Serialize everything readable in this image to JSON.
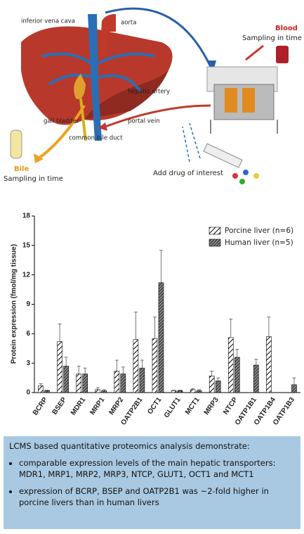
{
  "diagram": {
    "labels": {
      "ivc": "inferior vena cava",
      "aorta": "aorta",
      "hepatic_artery": "hepatic artery",
      "portal_vein": "portal vein",
      "gall_bladder": "gall bladder",
      "bile_duct": "common bile duct",
      "blood": "Blood",
      "blood_sampling": "Sampling in time",
      "bile": "Bile",
      "bile_sampling": "Sampling in time",
      "drug": "Add drug of interest"
    }
  },
  "chart_data": {
    "type": "bar",
    "y_label": "Protein expression (fmol/mg tissue)",
    "categories": [
      "BCRP",
      "BSEP",
      "MDR1",
      "MRP1",
      "MRP2",
      "OATP2B1",
      "OCT1",
      "GLUT1",
      "MCT1",
      "MRP3",
      "NTCP",
      "OATP1B1",
      "OATP1B4",
      "OATP1B3"
    ],
    "series": [
      {
        "name": "Porcine liver (n=6)",
        "color": "#ffffff",
        "values": [
          0.7,
          5.2,
          1.9,
          0.3,
          2.2,
          5.4,
          5.5,
          0.2,
          0.3,
          1.7,
          5.6,
          null,
          5.7,
          null
        ],
        "errors": [
          0.2,
          1.8,
          0.8,
          0.2,
          1.1,
          2.8,
          2.2,
          0.05,
          0.1,
          0.5,
          1.9,
          null,
          2.0,
          null
        ]
      },
      {
        "name": "Human liver (n=5)",
        "color": "#8a8a8a",
        "values": [
          0.2,
          2.7,
          1.9,
          0.2,
          1.9,
          2.5,
          11.2,
          0.2,
          0.2,
          1.2,
          3.6,
          2.8,
          null,
          0.8
        ],
        "errors": [
          0.05,
          0.9,
          0.6,
          0.1,
          0.7,
          0.8,
          3.3,
          0.05,
          0.1,
          0.3,
          0.8,
          0.6,
          null,
          0.7
        ]
      }
    ],
    "ylim": [
      0,
      18
    ],
    "yticks": [
      0,
      3,
      6,
      9,
      12,
      15,
      18
    ],
    "grid": false,
    "legend": "top-right"
  },
  "text_box": {
    "heading": "LCMS based quantitative proteomics analysis demonstrate:",
    "bullets": [
      "comparable expression levels of the main hepatic transporters: MDR1, MRP1, MRP2, MRP3, NTCP, GLUT1, OCT1 and MCT1",
      "expression of BCRP, BSEP and OATP2B1 was ~2-fold higher in porcine livers than in human livers"
    ]
  }
}
